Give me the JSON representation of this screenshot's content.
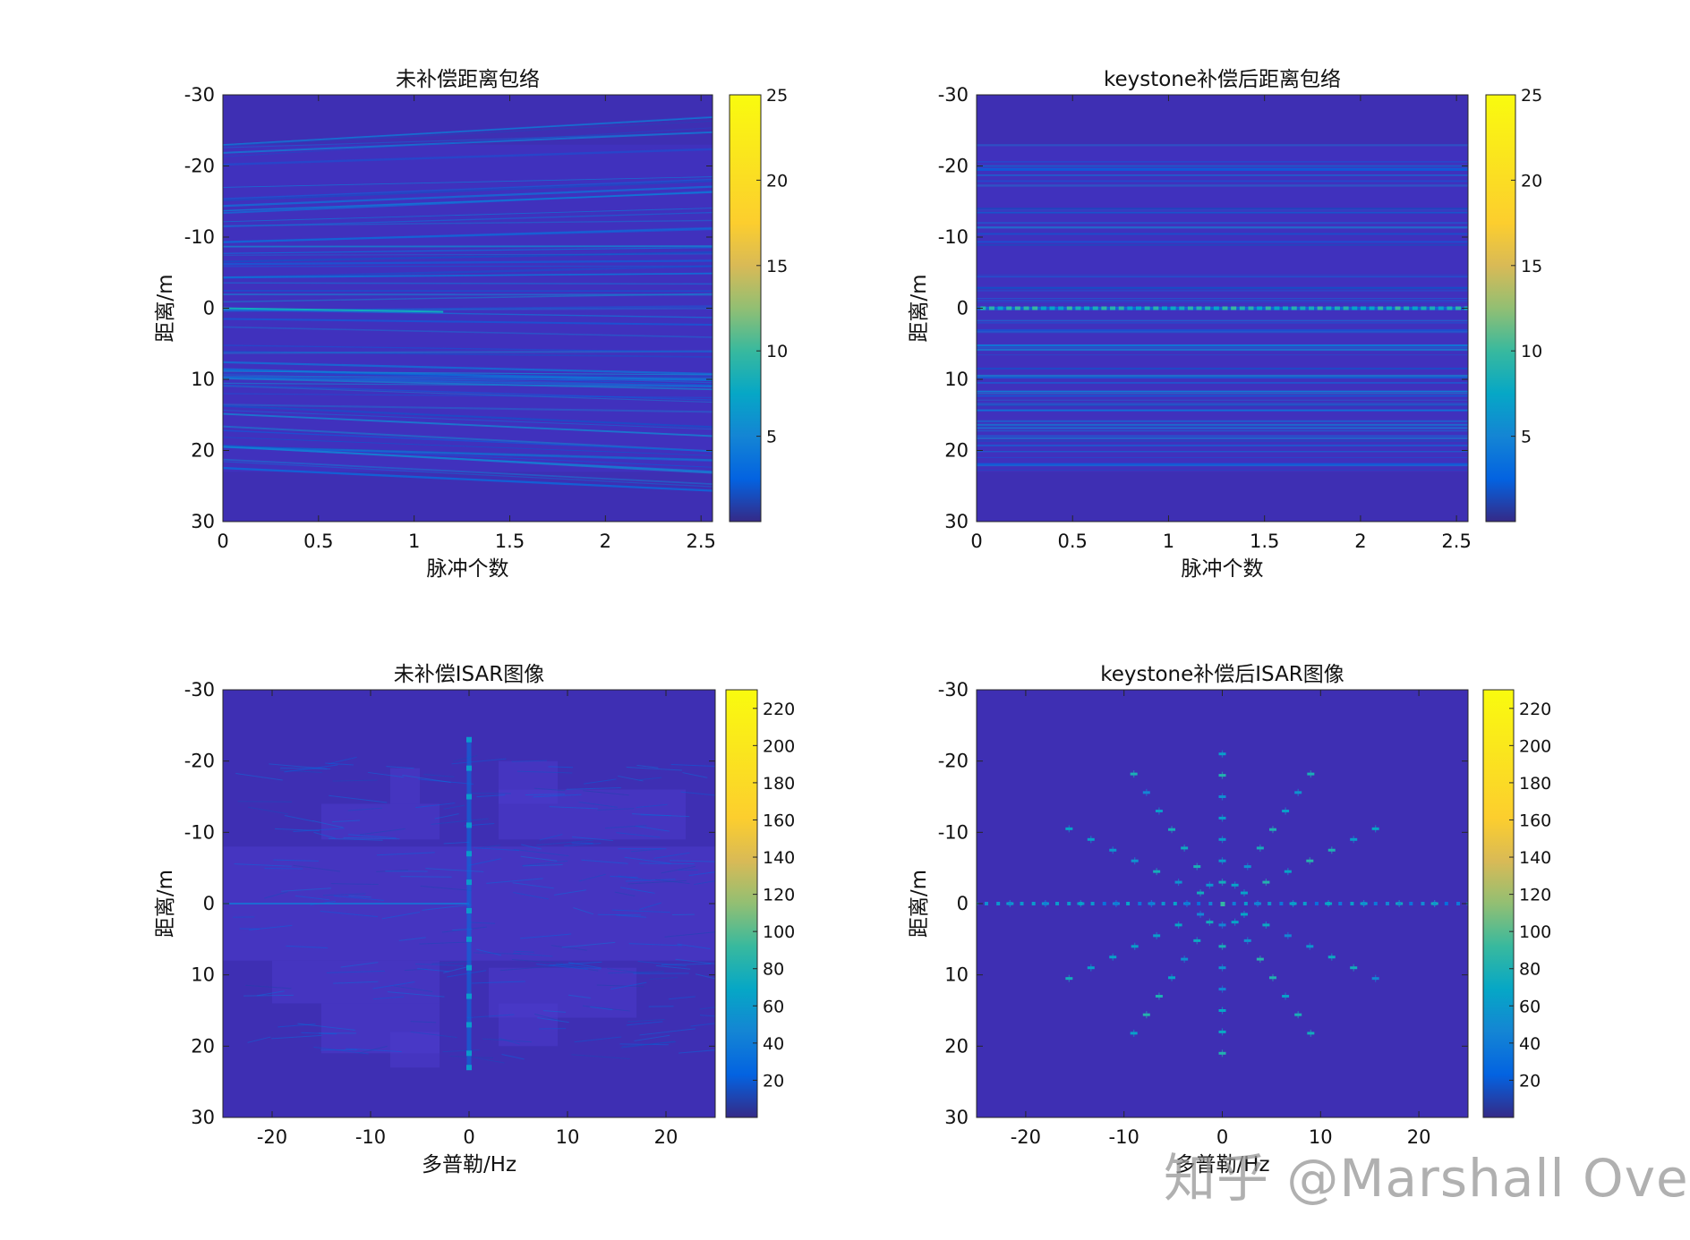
{
  "chart_data": [
    {
      "id": "p1",
      "type": "heatmap",
      "title": "未补偿距离包络",
      "xlabel": "脉冲个数",
      "ylabel": "距离/m",
      "xlim": [
        0,
        2.56
      ],
      "ylim": [
        -30,
        30
      ],
      "y_reversed": true,
      "xticks": [
        0,
        0.5,
        1,
        1.5,
        2,
        2.5
      ],
      "xtick_labels": [
        "0",
        "0.5",
        "1",
        "1.5",
        "2",
        "2.5"
      ],
      "yticks": [
        -30,
        -20,
        -10,
        0,
        10,
        20,
        30
      ],
      "ytick_labels": [
        "-30",
        "-20",
        "-10",
        "0",
        "10",
        "20",
        "30"
      ],
      "colormap": "parula",
      "clim": [
        0,
        25
      ],
      "colorbar_ticks": [
        5,
        10,
        15,
        20,
        25
      ],
      "colorbar_labels": [
        "5",
        "10",
        "15",
        "20",
        "25"
      ],
      "pattern": "drifting range envelopes",
      "target_extent_m": [
        -23,
        23
      ],
      "drift_m_per_unit": 3.5
    },
    {
      "id": "p2",
      "type": "heatmap",
      "title": "keystone补偿后距离包络",
      "xlabel": "脉冲个数",
      "ylabel": "距离/m",
      "xlim": [
        0,
        2.56
      ],
      "ylim": [
        -30,
        30
      ],
      "y_reversed": true,
      "xticks": [
        0,
        0.5,
        1,
        1.5,
        2,
        2.5
      ],
      "xtick_labels": [
        "0",
        "0.5",
        "1",
        "1.5",
        "2",
        "2.5"
      ],
      "yticks": [
        -30,
        -20,
        -10,
        0,
        10,
        20,
        30
      ],
      "ytick_labels": [
        "-30",
        "-20",
        "-10",
        "0",
        "10",
        "20",
        "30"
      ],
      "colormap": "parula",
      "clim": [
        0,
        25
      ],
      "colorbar_ticks": [
        5,
        10,
        15,
        20,
        25
      ],
      "colorbar_labels": [
        "5",
        "10",
        "15",
        "20",
        "25"
      ],
      "pattern": "straightened range envelopes",
      "target_extent_m": [
        -23,
        23
      ]
    },
    {
      "id": "p3",
      "type": "heatmap",
      "title": "未补偿ISAR图像",
      "xlabel": "多普勒/Hz",
      "ylabel": "距离/m",
      "xlim": [
        -25,
        25
      ],
      "ylim": [
        -30,
        30
      ],
      "y_reversed": true,
      "xticks": [
        -20,
        -10,
        0,
        10,
        20
      ],
      "xtick_labels": [
        "-20",
        "-10",
        "0",
        "10",
        "20"
      ],
      "yticks": [
        -30,
        -20,
        -10,
        0,
        10,
        20,
        30
      ],
      "ytick_labels": [
        "-30",
        "-20",
        "-10",
        "0",
        "10",
        "20",
        "30"
      ],
      "colormap": "parula",
      "clim": [
        0,
        230
      ],
      "colorbar_ticks": [
        20,
        40,
        60,
        80,
        100,
        120,
        140,
        160,
        180,
        200,
        220
      ],
      "colorbar_labels": [
        "20",
        "40",
        "60",
        "80",
        "100",
        "120",
        "140",
        "160",
        "180",
        "200",
        "220"
      ],
      "pattern": "defocused smeared image",
      "strong_column_hz": 0,
      "strong_points_range_m": [
        -23,
        -19,
        -15,
        -11,
        -7,
        -3,
        1,
        5,
        9,
        13,
        17,
        21,
        23
      ]
    },
    {
      "id": "p4",
      "type": "heatmap",
      "title": "keystone补偿后ISAR图像",
      "xlabel": "多普勒/Hz",
      "ylabel": "距离/m",
      "xlim": [
        -25,
        25
      ],
      "ylim": [
        -30,
        30
      ],
      "y_reversed": true,
      "xticks": [
        -20,
        -10,
        0,
        10,
        20
      ],
      "xtick_labels": [
        "-20",
        "-10",
        "0",
        "10",
        "20"
      ],
      "yticks": [
        -30,
        -20,
        -10,
        0,
        10,
        20,
        30
      ],
      "ytick_labels": [
        "-30",
        "-20",
        "-10",
        "0",
        "10",
        "20",
        "30"
      ],
      "colormap": "parula",
      "clim": [
        0,
        230
      ],
      "colorbar_ticks": [
        20,
        40,
        60,
        80,
        100,
        120,
        140,
        160,
        180,
        200,
        220
      ],
      "colorbar_labels": [
        "20",
        "40",
        "60",
        "80",
        "100",
        "120",
        "140",
        "160",
        "180",
        "200",
        "220"
      ],
      "pattern": "focused radial point targets",
      "num_spokes": 12,
      "spoke_length_m": 21,
      "points_per_spoke": 7,
      "horizontal_extent_hz": 24
    }
  ],
  "watermark": "知乎 @Marshall Over"
}
